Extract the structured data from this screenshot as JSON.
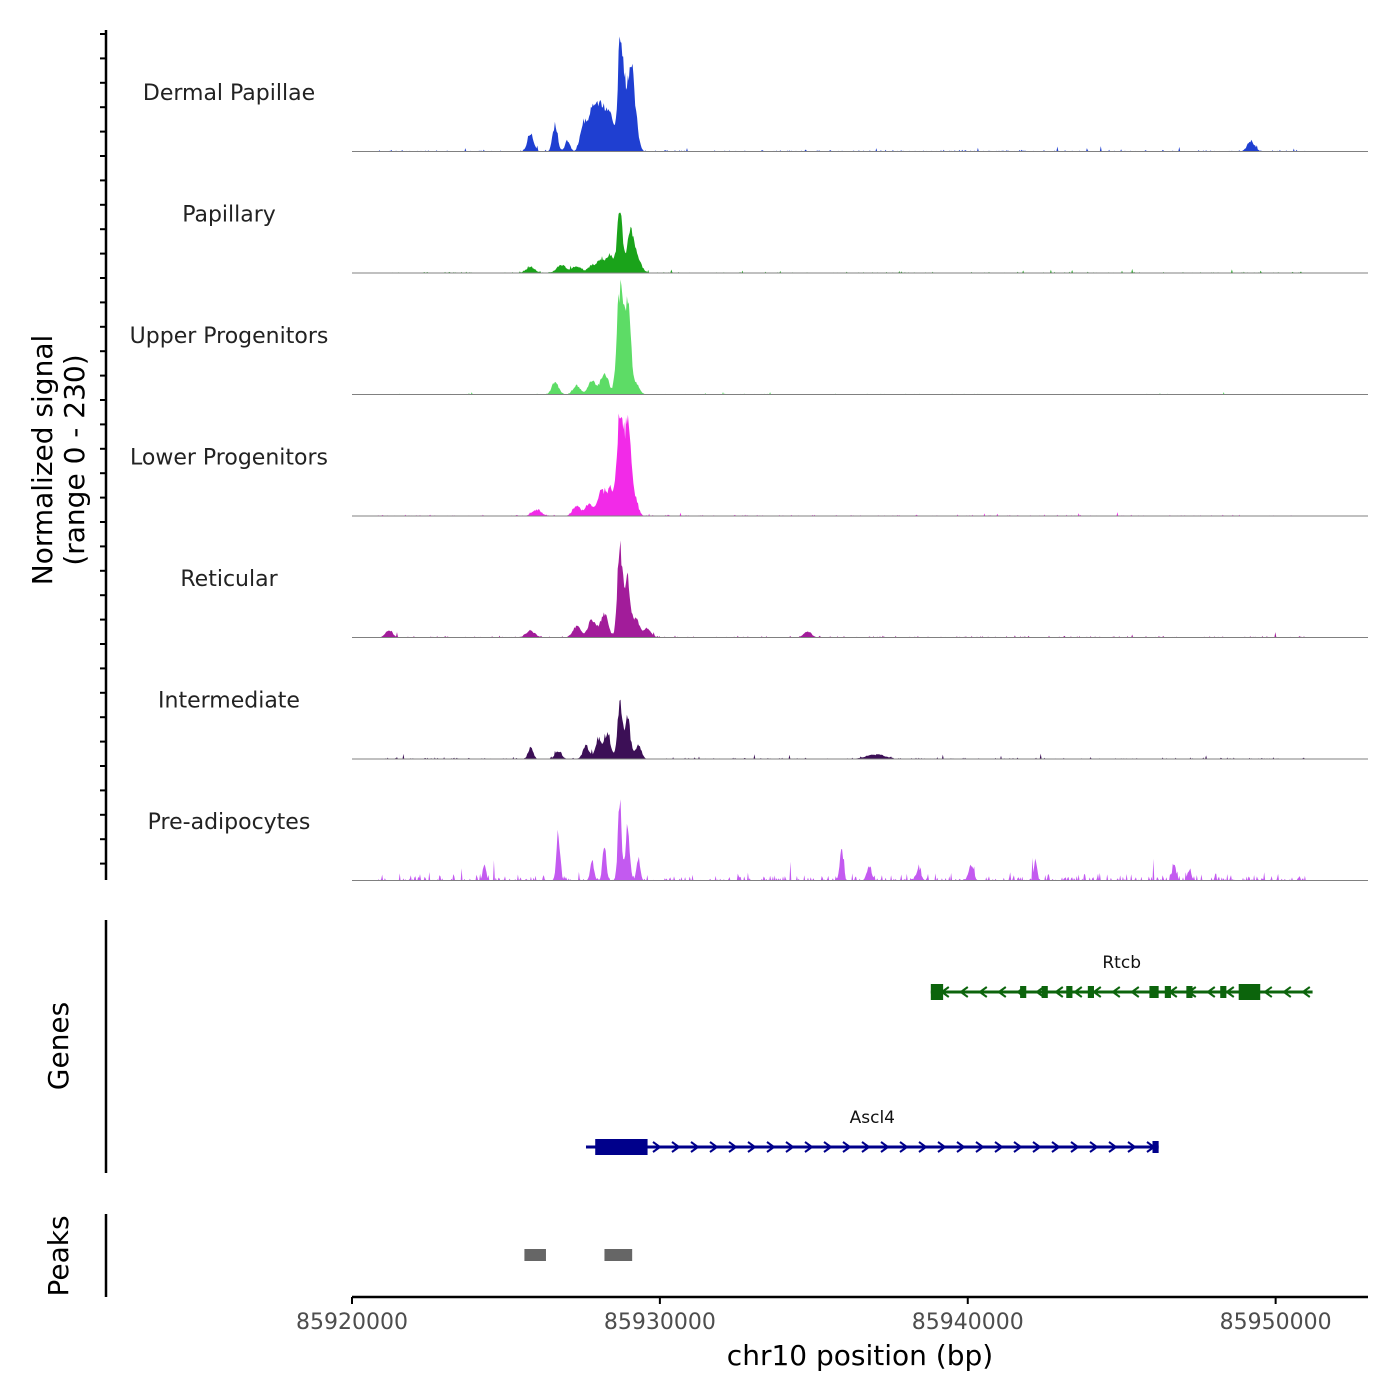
{
  "chart_data": {
    "type": "area",
    "title": "",
    "axis_labels": {
      "signal": "Normalized signal",
      "signal_range": "(range 0 - 230)",
      "genes": "Genes",
      "peaks": "Peaks",
      "x": "chr10 position (bp)"
    },
    "x_range": [
      85920000,
      85953000
    ],
    "y_range": [
      0,
      230
    ],
    "x_ticks": [
      85920000,
      85930000,
      85940000,
      85950000
    ],
    "x_tick_labels": [
      "85920000",
      "85930000",
      "85940000",
      "85950000"
    ],
    "tracks": [
      {
        "name": "Dermal Papillae",
        "color": "#1f3fd1",
        "peaks": [
          [
            85925800,
            40,
            100
          ],
          [
            85926600,
            60,
            80
          ],
          [
            85927000,
            25,
            80
          ],
          [
            85927500,
            55,
            100
          ],
          [
            85927800,
            85,
            150
          ],
          [
            85928100,
            90,
            150
          ],
          [
            85928400,
            75,
            130
          ],
          [
            85928700,
            225,
            70
          ],
          [
            85928850,
            150,
            80
          ],
          [
            85929050,
            185,
            80
          ],
          [
            85929200,
            75,
            100
          ],
          [
            85949200,
            22,
            120
          ]
        ],
        "noise": 4,
        "seed": 11
      },
      {
        "name": "Papillary",
        "color": "#1aa31a",
        "peaks": [
          [
            85925800,
            12,
            150
          ],
          [
            85926800,
            18,
            150
          ],
          [
            85927300,
            15,
            150
          ],
          [
            85927800,
            18,
            120
          ],
          [
            85928100,
            30,
            120
          ],
          [
            85928400,
            40,
            120
          ],
          [
            85928700,
            145,
            80
          ],
          [
            85929050,
            95,
            120
          ],
          [
            85929300,
            25,
            120
          ]
        ],
        "noise": 3,
        "seed": 23
      },
      {
        "name": "Upper Progenitors",
        "color": "#5ddc66",
        "peaks": [
          [
            85926600,
            28,
            110
          ],
          [
            85927300,
            20,
            120
          ],
          [
            85927800,
            30,
            130
          ],
          [
            85928200,
            50,
            120
          ],
          [
            85928700,
            230,
            100
          ],
          [
            85928950,
            210,
            100
          ],
          [
            85929250,
            22,
            100
          ]
        ],
        "noise": 2,
        "seed": 37
      },
      {
        "name": "Lower Progenitors",
        "color": "#f22ae8",
        "peaks": [
          [
            85926000,
            14,
            150
          ],
          [
            85927300,
            22,
            130
          ],
          [
            85927700,
            28,
            120
          ],
          [
            85928100,
            55,
            120
          ],
          [
            85928400,
            60,
            120
          ],
          [
            85928700,
            230,
            90
          ],
          [
            85928950,
            200,
            110
          ],
          [
            85929200,
            35,
            100
          ]
        ],
        "noise": 3,
        "seed": 41
      },
      {
        "name": "Reticular",
        "color": "#a21c9a",
        "peaks": [
          [
            85921200,
            14,
            120
          ],
          [
            85925800,
            15,
            150
          ],
          [
            85927300,
            25,
            130
          ],
          [
            85927800,
            40,
            130
          ],
          [
            85928200,
            55,
            120
          ],
          [
            85928700,
            200,
            80
          ],
          [
            85928950,
            130,
            100
          ],
          [
            85929250,
            40,
            100
          ],
          [
            85929600,
            20,
            120
          ],
          [
            85934800,
            14,
            120
          ]
        ],
        "noise": 4,
        "seed": 53
      },
      {
        "name": "Intermediate",
        "color": "#3c0f56",
        "peaks": [
          [
            85925800,
            25,
            80
          ],
          [
            85926700,
            18,
            100
          ],
          [
            85927600,
            30,
            100
          ],
          [
            85928000,
            45,
            100
          ],
          [
            85928300,
            60,
            100
          ],
          [
            85928700,
            120,
            80
          ],
          [
            85928950,
            90,
            90
          ],
          [
            85929300,
            30,
            100
          ],
          [
            85937000,
            10,
            300
          ]
        ],
        "noise": 4,
        "seed": 67
      },
      {
        "name": "Pre-adipocytes",
        "color": "#c35af0",
        "peaks": [
          [
            85924300,
            40,
            50
          ],
          [
            85926700,
            100,
            60
          ],
          [
            85927800,
            45,
            60
          ],
          [
            85928200,
            70,
            60
          ],
          [
            85928700,
            175,
            60
          ],
          [
            85928950,
            130,
            60
          ],
          [
            85929300,
            50,
            60
          ],
          [
            85935900,
            70,
            60
          ],
          [
            85936800,
            30,
            80
          ],
          [
            85938400,
            25,
            80
          ],
          [
            85940100,
            35,
            80
          ],
          [
            85942200,
            50,
            50
          ],
          [
            85946700,
            35,
            60
          ],
          [
            85947200,
            25,
            60
          ]
        ],
        "noise": 18,
        "seed": 79
      }
    ],
    "genes": [
      {
        "name": "Rtcb",
        "strand": "-",
        "start": 85938800,
        "end": 85951200,
        "color": "#0c640c",
        "exons": [
          [
            85938800,
            85939200,
            "large"
          ],
          [
            85941700,
            85941900,
            "small"
          ],
          [
            85942400,
            85942600,
            "small"
          ],
          [
            85943200,
            85943400,
            "small"
          ],
          [
            85943900,
            85944100,
            "small"
          ],
          [
            85945900,
            85946200,
            "small"
          ],
          [
            85946400,
            85946600,
            "small"
          ],
          [
            85947100,
            85947300,
            "small"
          ],
          [
            85948200,
            85948400,
            "small"
          ],
          [
            85948800,
            85949500,
            "large"
          ]
        ]
      },
      {
        "name": "Ascl4",
        "strand": "+",
        "start": 85927600,
        "end": 85946200,
        "color": "#00008b",
        "exons": [
          [
            85927900,
            85929600,
            "large"
          ],
          [
            85946000,
            85946200,
            "small"
          ]
        ]
      }
    ],
    "peak_regions": [
      [
        85925600,
        85926300
      ],
      [
        85928200,
        85929100
      ]
    ]
  }
}
